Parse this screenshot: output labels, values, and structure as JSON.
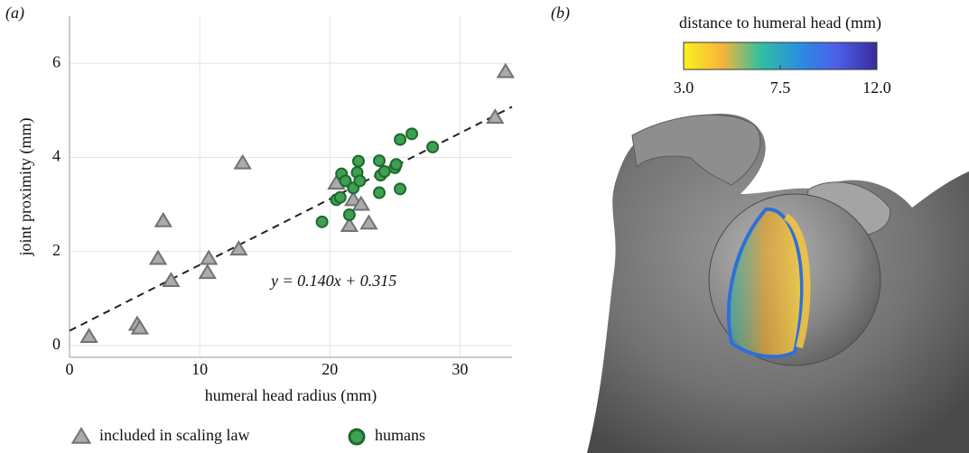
{
  "chart_data": [
    {
      "type": "scatter",
      "panel": "(a)",
      "xlabel": "humeral head radius (mm)",
      "ylabel": "joint proximity (mm)",
      "xlim": [
        0,
        34
      ],
      "ylim": [
        -0.25,
        7
      ],
      "xticks": [
        0,
        10,
        20,
        30
      ],
      "yticks": [
        0,
        2,
        4,
        6
      ],
      "grid": true,
      "series": [
        {
          "name": "included in scaling law",
          "marker": "triangle",
          "color": "#ababab",
          "edgecolor": "#727272",
          "x": [
            1.5,
            5.2,
            5.4,
            6.8,
            7.2,
            7.8,
            10.6,
            10.7,
            13.0,
            13.3,
            20.5,
            21.5,
            21.8,
            22.4,
            23.0,
            32.7,
            33.5
          ],
          "values": [
            0.19,
            0.45,
            0.37,
            1.85,
            2.65,
            1.38,
            1.55,
            1.85,
            2.05,
            3.88,
            3.45,
            2.55,
            3.1,
            3.0,
            2.6,
            4.85,
            5.82
          ]
        },
        {
          "name": "humans",
          "marker": "circle",
          "color": "#3f9f52",
          "edgecolor": "#1d6a2c",
          "x": [
            19.4,
            20.5,
            20.8,
            20.9,
            21.2,
            21.5,
            21.8,
            22.1,
            22.2,
            22.3,
            23.8,
            23.9,
            23.8,
            24.2,
            25.0,
            25.1,
            25.4,
            25.4,
            26.3,
            27.9
          ],
          "values": [
            2.63,
            3.1,
            3.15,
            3.65,
            3.5,
            2.78,
            3.35,
            3.68,
            3.92,
            3.5,
            3.93,
            3.62,
            3.25,
            3.7,
            3.78,
            3.85,
            4.38,
            3.33,
            4.5,
            4.22
          ]
        }
      ],
      "fit": {
        "slope": 0.14,
        "intercept": 0.315,
        "label": "y = 0.140x + 0.315"
      }
    },
    {
      "type": "colorbar",
      "panel": "(b)",
      "title": "distance to humeral head (mm)",
      "clim": [
        3,
        12
      ],
      "ticks": [
        {
          "value": 3,
          "label": "3.0"
        },
        {
          "value": 7.5,
          "label": "7.5"
        },
        {
          "value": 12,
          "label": "12.0"
        }
      ],
      "colors": [
        "#f9f120",
        "#f7b43a",
        "#2fbfa0",
        "#2a8ee0",
        "#4c5de9",
        "#3a2b9a"
      ]
    }
  ]
}
